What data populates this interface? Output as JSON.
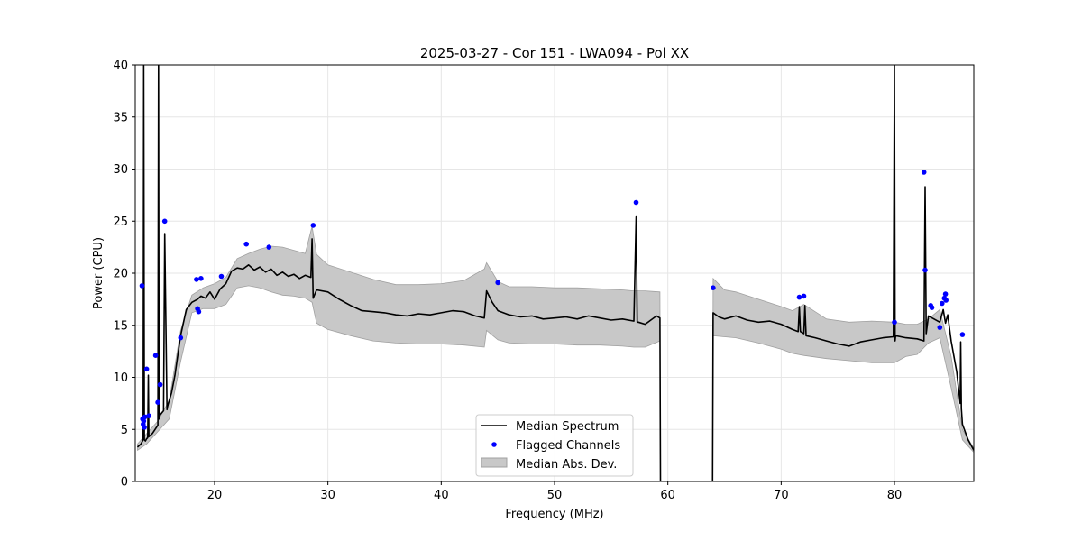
{
  "chart_data": {
    "type": "line",
    "title": "2025-03-27 - Cor 151 - LWA094 - Pol XX",
    "xlabel": "Frequency (MHz)",
    "ylabel": "Power (CPU)",
    "xlim": [
      13,
      87
    ],
    "ylim": [
      0,
      40
    ],
    "xticks": [
      20,
      30,
      40,
      50,
      60,
      70,
      80
    ],
    "yticks": [
      0,
      5,
      10,
      15,
      20,
      25,
      30,
      35,
      40
    ],
    "grid": true,
    "legend": {
      "location": "lower center",
      "entries": [
        "Median Spectrum",
        "Flagged Channels",
        "Median Abs. Dev."
      ]
    },
    "colors": {
      "median": "#000000",
      "flagged": "#0000ff",
      "mad_fill": "#c8c8c8",
      "mad_edge": "#a0a0a0",
      "grid": "#e6e6e6"
    },
    "series": [
      {
        "name": "Median Spectrum",
        "x": [
          13.2,
          13.5,
          13.7,
          13.75,
          13.8,
          13.9,
          14.0,
          14.1,
          14.15,
          14.2,
          14.5,
          15.0,
          15.05,
          15.1,
          15.2,
          15.5,
          15.6,
          15.8,
          15.85,
          15.9,
          16.2,
          16.5,
          16.8,
          17.0,
          17.5,
          18.0,
          18.5,
          18.8,
          19.2,
          19.6,
          20.0,
          20.5,
          21.0,
          21.5,
          22.0,
          22.5,
          23.0,
          23.5,
          24.0,
          24.5,
          25.0,
          25.5,
          26.0,
          26.5,
          27.0,
          27.5,
          28.0,
          28.5,
          28.6,
          28.7,
          29.0,
          30.0,
          31.0,
          32.0,
          33.0,
          34.0,
          35.0,
          36.0,
          37.0,
          38.0,
          39.0,
          40.0,
          41.0,
          42.0,
          43.0,
          43.8,
          44.0,
          44.5,
          45.0,
          46.0,
          47.0,
          48.0,
          49.0,
          50.0,
          51.0,
          52.0,
          53.0,
          54.0,
          55.0,
          56.0,
          57.0,
          57.2,
          57.3,
          57.4,
          58.0,
          59.0,
          59.3,
          59.35,
          63.95,
          64.0,
          64.5,
          65.0,
          66.0,
          67.0,
          68.0,
          69.0,
          70.0,
          71.0,
          71.5,
          71.6,
          71.7,
          72.0,
          72.1,
          72.2,
          73.0,
          74.0,
          75.0,
          76.0,
          77.0,
          78.0,
          79.0,
          79.9,
          80.0,
          80.05,
          80.1,
          81.0,
          82.0,
          82.6,
          82.7,
          82.8,
          83.0,
          84.0,
          84.3,
          84.5,
          84.7,
          85.0,
          85.5,
          85.8,
          85.85,
          85.9,
          86.0,
          86.5,
          87.0
        ],
        "y": [
          3.3,
          3.6,
          4.0,
          40,
          4.0,
          3.9,
          4.1,
          4.2,
          10.2,
          4.3,
          4.6,
          5.4,
          40,
          6.0,
          6.4,
          6.8,
          23.8,
          6.9,
          7.2,
          7.4,
          8.5,
          10.2,
          12.5,
          14.0,
          16.5,
          17.2,
          17.5,
          17.8,
          17.6,
          18.2,
          17.5,
          18.5,
          19.0,
          20.2,
          20.5,
          20.4,
          20.8,
          20.3,
          20.6,
          20.1,
          20.4,
          19.8,
          20.1,
          19.7,
          19.9,
          19.5,
          19.8,
          19.6,
          23.3,
          17.6,
          18.4,
          18.2,
          17.5,
          16.9,
          16.4,
          16.3,
          16.2,
          16.0,
          15.9,
          16.1,
          16.0,
          16.2,
          16.4,
          16.3,
          15.9,
          15.7,
          18.3,
          17.2,
          16.4,
          16.0,
          15.8,
          15.9,
          15.6,
          15.7,
          15.8,
          15.6,
          15.9,
          15.7,
          15.5,
          15.6,
          15.4,
          25.4,
          15.3,
          15.3,
          15.1,
          15.9,
          15.7,
          0,
          0,
          16.2,
          15.8,
          15.6,
          15.9,
          15.5,
          15.3,
          15.4,
          15.1,
          14.6,
          14.4,
          16.8,
          14.4,
          14.2,
          16.9,
          14.0,
          13.8,
          13.5,
          13.2,
          13.0,
          13.4,
          13.6,
          13.8,
          13.9,
          40,
          13.5,
          14.0,
          13.8,
          13.7,
          13.5,
          28.3,
          14.2,
          15.9,
          15.3,
          16.5,
          15.2,
          16.0,
          13.5,
          10.5,
          7.5,
          13.4,
          7.0,
          5.5,
          4.0,
          3.0
        ]
      },
      {
        "name": "Median Abs. Dev.",
        "x": [
          13.2,
          14.0,
          15.0,
          16.0,
          17.0,
          18.0,
          19.0,
          20.0,
          21.0,
          22.0,
          23.0,
          24.0,
          25.0,
          26.0,
          27.0,
          28.0,
          28.6,
          29.0,
          30.0,
          32.0,
          34.0,
          36.0,
          38.0,
          40.0,
          42.0,
          43.8,
          44.0,
          45.0,
          46.0,
          48.0,
          50.0,
          52.0,
          54.0,
          56.0,
          57.0,
          58.0,
          59.3,
          59.35,
          63.95,
          64.0,
          65.0,
          66.0,
          68.0,
          70.0,
          71.0,
          72.0,
          74.0,
          76.0,
          78.0,
          80.0,
          81.0,
          82.0,
          83.0,
          84.0,
          85.0,
          86.0,
          87.0
        ],
        "upper": [
          3.6,
          4.6,
          5.8,
          7.8,
          14.5,
          17.9,
          18.6,
          19.0,
          19.6,
          21.4,
          21.9,
          22.3,
          22.6,
          22.5,
          22.2,
          21.9,
          24.5,
          21.8,
          20.8,
          20.1,
          19.4,
          18.9,
          18.9,
          19.0,
          19.3,
          20.4,
          21.0,
          19.2,
          18.7,
          18.7,
          18.6,
          18.6,
          18.5,
          18.4,
          18.3,
          18.3,
          18.2,
          0,
          0,
          19.5,
          18.4,
          18.2,
          17.5,
          16.8,
          16.4,
          17.0,
          15.6,
          15.3,
          15.4,
          15.3,
          15.1,
          15.1,
          15.6,
          16.5,
          12.0,
          5.0,
          3.2
        ],
        "lower": [
          3.0,
          3.6,
          4.8,
          6.0,
          11.5,
          16.2,
          16.6,
          16.6,
          17.0,
          18.6,
          18.8,
          18.6,
          18.2,
          17.9,
          17.8,
          17.6,
          17.2,
          15.2,
          14.6,
          14.0,
          13.5,
          13.3,
          13.2,
          13.2,
          13.1,
          12.9,
          14.5,
          13.6,
          13.3,
          13.2,
          13.2,
          13.1,
          13.1,
          13.0,
          12.9,
          12.9,
          13.5,
          0,
          0,
          14.0,
          13.9,
          13.8,
          13.3,
          12.7,
          12.3,
          12.1,
          11.8,
          11.6,
          11.4,
          11.4,
          12.0,
          12.2,
          13.3,
          13.8,
          9.0,
          4.0,
          2.8
        ]
      },
      {
        "name": "Flagged Channels",
        "x": [
          13.6,
          13.65,
          13.7,
          13.75,
          13.8,
          13.85,
          14.0,
          14.2,
          14.8,
          15.0,
          15.2,
          15.6,
          17.0,
          18.4,
          18.5,
          18.6,
          18.8,
          20.6,
          22.8,
          24.8,
          28.7,
          45.0,
          57.2,
          64.0,
          71.6,
          72.0,
          80.0,
          82.6,
          82.7,
          83.2,
          83.3,
          84.0,
          84.2,
          84.4,
          84.5,
          84.55,
          86.0
        ],
        "y": [
          18.8,
          6.0,
          5.5,
          5.8,
          5.2,
          6.2,
          10.8,
          6.3,
          12.1,
          7.6,
          9.3,
          25.0,
          13.8,
          19.4,
          16.6,
          16.3,
          19.5,
          19.7,
          22.8,
          22.5,
          24.6,
          19.1,
          26.8,
          18.6,
          17.7,
          17.8,
          15.3,
          29.7,
          20.3,
          16.9,
          16.7,
          14.8,
          17.1,
          17.6,
          18.0,
          17.4,
          14.1
        ]
      }
    ]
  }
}
